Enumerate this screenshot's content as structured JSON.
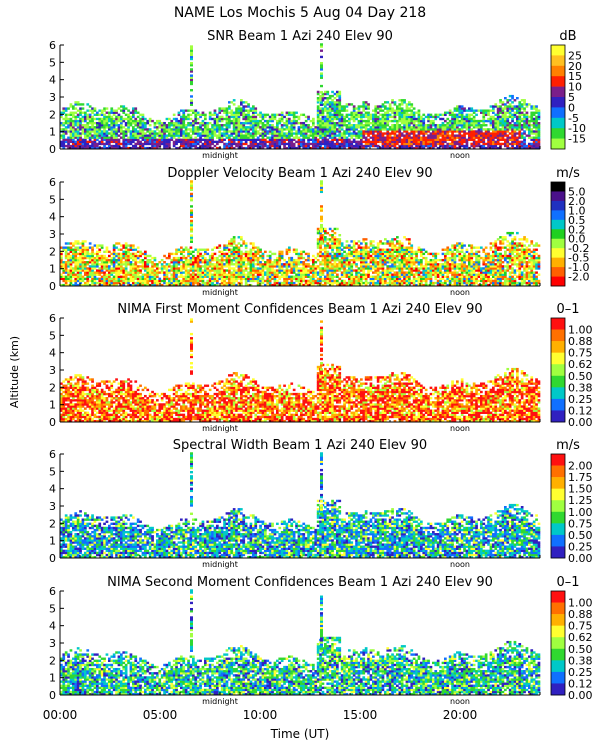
{
  "figure": {
    "header": "NAME Los Mochis    5 Aug 04 Day 218",
    "ylabel": "Altitude (km)",
    "xlabel": "Time (UT)",
    "xticks": [
      "00:00",
      "05:00",
      "10:00",
      "15:00",
      "20:00"
    ],
    "yticks": [
      "0",
      "1",
      "2",
      "3",
      "4",
      "5",
      "6"
    ],
    "midnight_label": "midnight",
    "noon_label": "noon"
  },
  "chart_data": [
    {
      "type": "heatmap",
      "title": "SNR Beam 1 Azi 240 Elev 90",
      "unit": "dB",
      "xlim": [
        0,
        24
      ],
      "ylim": [
        0,
        6
      ],
      "colorbar": {
        "labels": [
          "25",
          "20",
          "15",
          "10",
          "5",
          "0",
          "-5",
          "-10",
          "-15"
        ],
        "colors": [
          "#ffff30",
          "#ffc020",
          "#ff8000",
          "#ff2000",
          "#7a1f8a",
          "#3020c0",
          "#1070ff",
          "#00c8c8",
          "#30d830",
          "#a0ff40"
        ]
      }
    },
    {
      "type": "heatmap",
      "title": "Doppler Velocity Beam 1 Azi 240 Elev 90",
      "unit": "m/s",
      "xlim": [
        0,
        24
      ],
      "ylim": [
        0,
        6
      ],
      "colorbar": {
        "labels": [
          "5.0",
          "2.0",
          "1.0",
          "0.5",
          "0.2",
          "0.0",
          "-0.2",
          "-0.5",
          "-1.0",
          "-2.0"
        ],
        "colors": [
          "#000000",
          "#4a108a",
          "#2030c0",
          "#1070ff",
          "#00c8c8",
          "#20d020",
          "#a0ff40",
          "#ffff30",
          "#ffb000",
          "#ff6000",
          "#ff0000"
        ]
      }
    },
    {
      "type": "heatmap",
      "title": "NIMA First Moment Confidences Beam 1 Azi 240 Elev 90",
      "unit": "0–1",
      "xlim": [
        0,
        24
      ],
      "ylim": [
        0,
        6
      ],
      "colorbar": {
        "labels": [
          "1.00",
          "0.88",
          "0.75",
          "0.62",
          "0.50",
          "0.38",
          "0.25",
          "0.12",
          "0.00"
        ],
        "colors": [
          "#ff1010",
          "#ff7000",
          "#ffb000",
          "#ffff30",
          "#a0ff40",
          "#30d830",
          "#00c8c8",
          "#1070ff",
          "#3020c0"
        ]
      }
    },
    {
      "type": "heatmap",
      "title": "Spectral Width Beam 1 Azi 240 Elev 90",
      "unit": "m/s",
      "xlim": [
        0,
        24
      ],
      "ylim": [
        0,
        6
      ],
      "colorbar": {
        "labels": [
          "2.00",
          "1.75",
          "1.50",
          "1.25",
          "1.00",
          "0.75",
          "0.50",
          "0.25",
          "0.00"
        ],
        "colors": [
          "#ff1010",
          "#ff7000",
          "#ffb000",
          "#ffff30",
          "#a0ff40",
          "#30d830",
          "#00c8c8",
          "#1070ff",
          "#3020c0"
        ]
      }
    },
    {
      "type": "heatmap",
      "title": "NIMA Second Moment Confidences Beam 1 Azi 240 Elev 90",
      "unit": "0–1",
      "xlim": [
        0,
        24
      ],
      "ylim": [
        0,
        6
      ],
      "colorbar": {
        "labels": [
          "1.00",
          "0.88",
          "0.75",
          "0.62",
          "0.50",
          "0.38",
          "0.25",
          "0.12",
          "0.00"
        ],
        "colors": [
          "#ff1010",
          "#ff7000",
          "#ffb000",
          "#ffff30",
          "#a0ff40",
          "#30d830",
          "#00c8c8",
          "#1070ff",
          "#3020c0"
        ]
      }
    }
  ]
}
